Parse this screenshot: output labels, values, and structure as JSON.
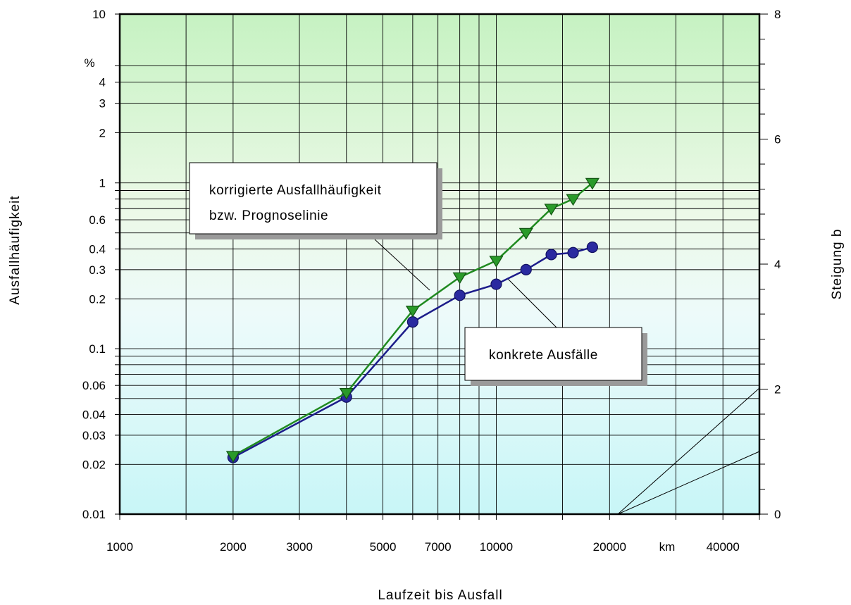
{
  "chart_data": {
    "type": "scatter",
    "title": "",
    "xlabel": "Laufzeit bis Ausfall",
    "x_unit": "km",
    "ylabel": "Ausfallhäufigkeit",
    "y_unit": "%",
    "y2label": "Steigung b",
    "x_scale": "log",
    "y_scale": "weibull",
    "xlim": [
      1000,
      50000
    ],
    "ylim": [
      0.01,
      10
    ],
    "y2lim": [
      0,
      8
    ],
    "grid": true,
    "x_ticks": [
      1000,
      2000,
      3000,
      5000,
      7000,
      10000,
      20000,
      40000
    ],
    "y_ticks": [
      0.01,
      0.02,
      0.03,
      0.04,
      0.06,
      0.1,
      0.2,
      0.3,
      0.4,
      0.6,
      1,
      2,
      3,
      4,
      10
    ],
    "y2_ticks": [
      0,
      2,
      4,
      6,
      8
    ],
    "series": [
      {
        "color": "#1f8a1f",
        "marker": "triangle-down",
        "x": [
          2000,
          4000,
          6000,
          8000,
          10000,
          12000,
          14000,
          16000,
          18000
        ],
        "y": [
          0.0225,
          0.054,
          0.17,
          0.27,
          0.34,
          0.5,
          0.7,
          0.8,
          1.0
        ]
      },
      {
        "color": "#1c1c8a",
        "marker": "circle",
        "x": [
          2000,
          4000,
          6000,
          8000,
          10000,
          12000,
          14000,
          16000,
          18000
        ],
        "y": [
          0.022,
          0.051,
          0.145,
          0.21,
          0.245,
          0.3,
          0.37,
          0.38,
          0.41
        ]
      }
    ],
    "annotations": [
      {
        "lines": [
          "korrigierte Ausfallhäufigkeit",
          "bzw. Prognoselinie"
        ]
      },
      {
        "lines": [
          "konkrete Ausfälle"
        ]
      }
    ]
  }
}
